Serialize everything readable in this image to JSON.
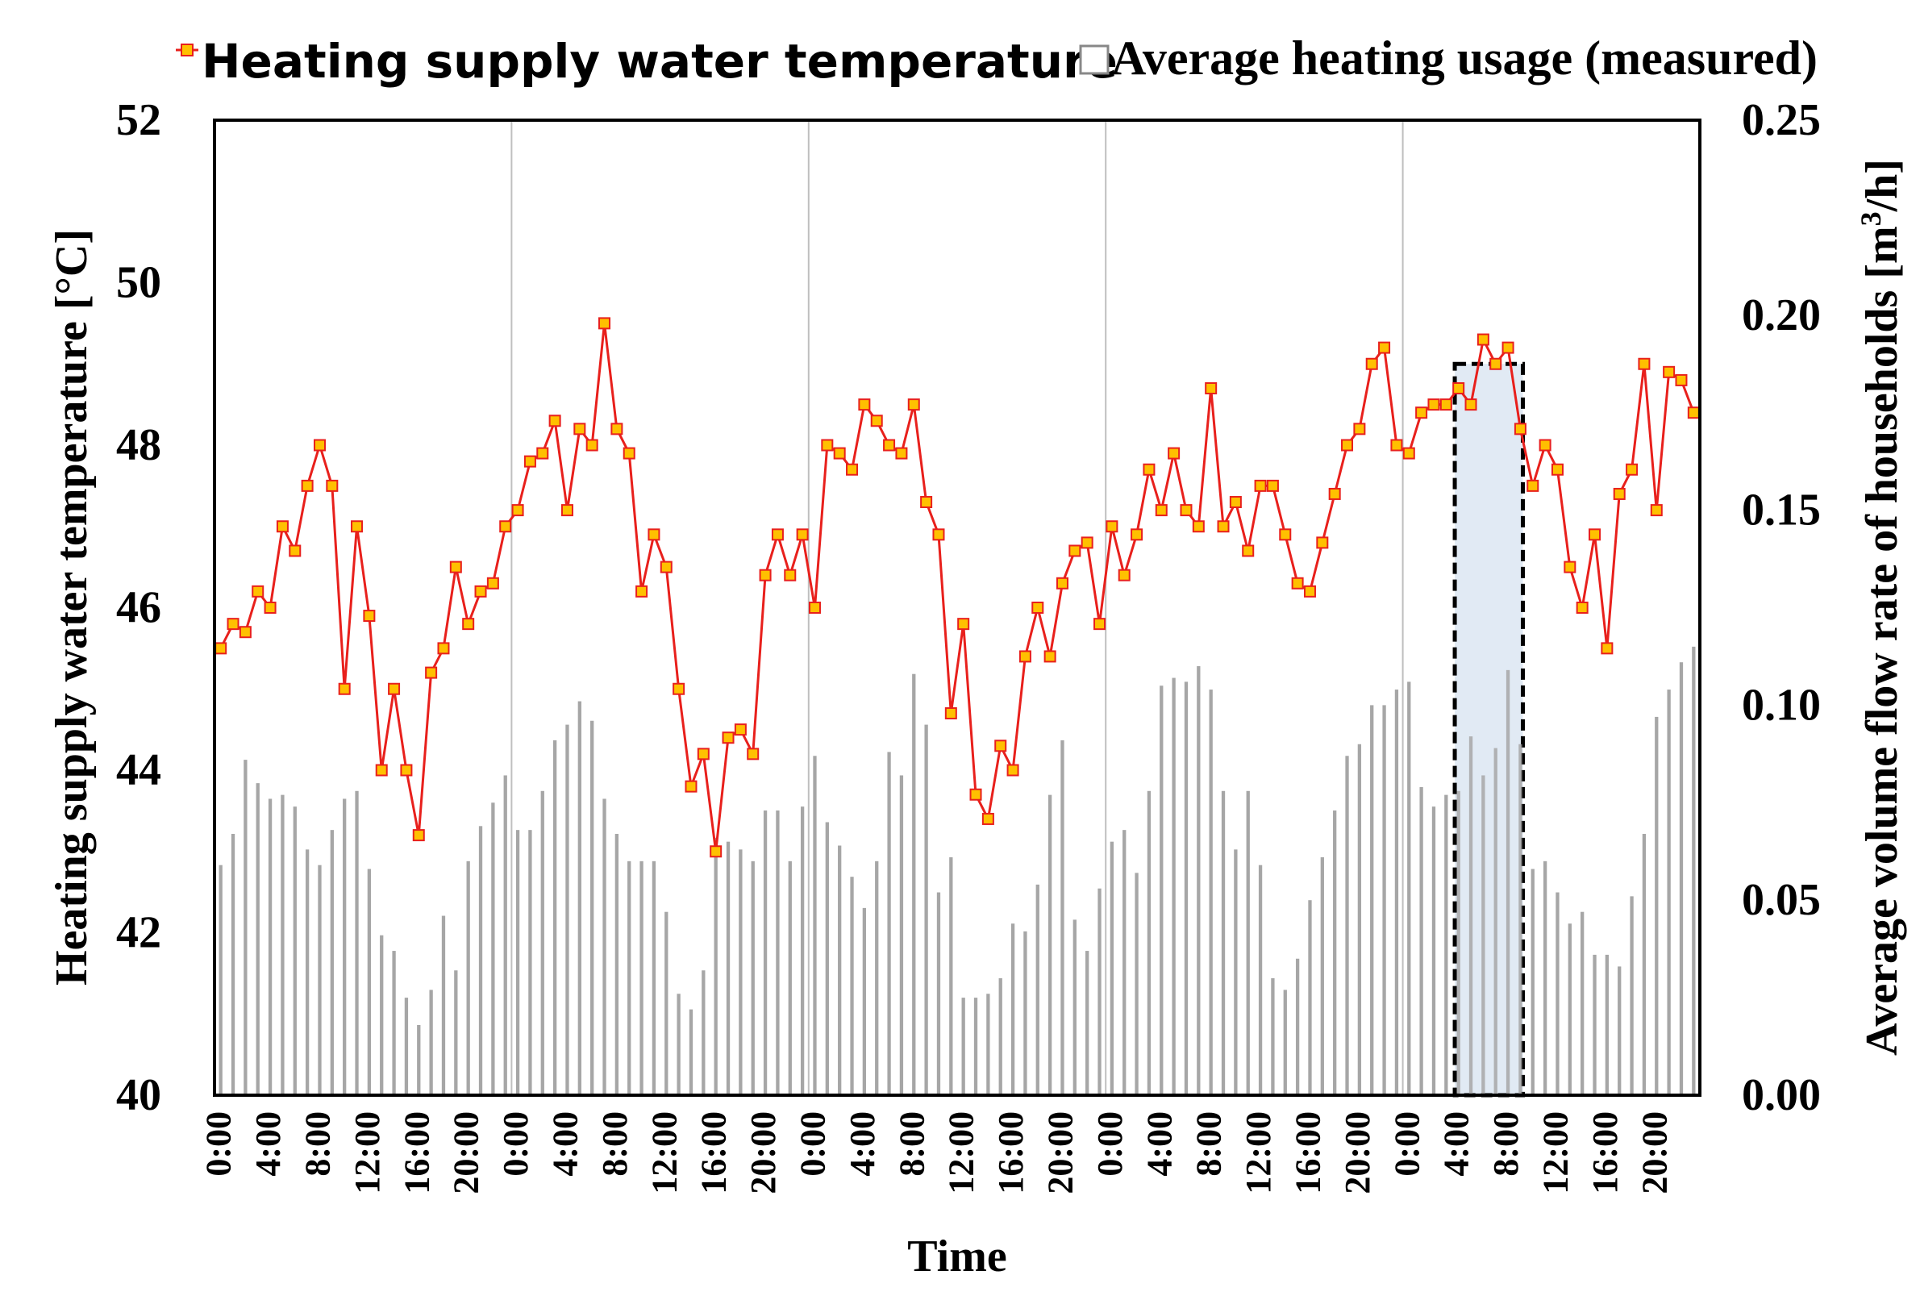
{
  "chart_data": {
    "type": "line+bar",
    "xlabel": "Time",
    "ylabel_left": "Heating supply water temperature [°C]",
    "ylabel_right_prefix": "Average volume flow rate of households [m",
    "ylabel_right_sup": "3",
    "ylabel_right_suffix": "/h]",
    "ylim_left": [
      40,
      52
    ],
    "ylim_right": [
      0,
      0.25
    ],
    "yticks_left": [
      "40",
      "42",
      "44",
      "46",
      "48",
      "50",
      "52"
    ],
    "yticks_right": [
      "0.00",
      "0.05",
      "0.10",
      "0.15",
      "0.20",
      "0.25"
    ],
    "xtick_labels": [
      "0:00",
      "4:00",
      "8:00",
      "12:00",
      "16:00",
      "20:00",
      "0:00",
      "4:00",
      "8:00",
      "12:00",
      "16:00",
      "20:00",
      "0:00",
      "4:00",
      "8:00",
      "12:00",
      "16:00",
      "20:00",
      "0:00",
      "4:00",
      "8:00",
      "12:00",
      "16:00",
      "20:00",
      "0:00",
      "4:00",
      "8:00",
      "12:00",
      "16:00",
      "20:00"
    ],
    "legend": {
      "line_label": "Heating supply water temperature",
      "bar_label": "Average heating usage (measured)"
    },
    "colors": {
      "line": "#e8201c",
      "marker_fill": "#ffc000",
      "bar": "#a6a6a6",
      "highlight": "#dce6f2"
    },
    "highlight_hours": [
      100,
      106
    ],
    "series": [
      {
        "name": "Heating supply water temperature",
        "axis": "left",
        "values": [
          45.5,
          45.8,
          45.7,
          46.2,
          46.0,
          47.0,
          46.7,
          47.5,
          48.0,
          47.5,
          45.0,
          47.0,
          45.9,
          44.0,
          45.0,
          44.0,
          43.2,
          45.2,
          45.5,
          46.5,
          45.8,
          46.2,
          46.3,
          47.0,
          47.2,
          47.8,
          47.9,
          48.3,
          47.2,
          48.2,
          48.0,
          49.5,
          48.2,
          47.9,
          46.2,
          46.9,
          46.5,
          45.0,
          43.8,
          44.2,
          43.0,
          44.4,
          44.5,
          44.2,
          46.4,
          46.9,
          46.4,
          46.9,
          46.0,
          48.0,
          47.9,
          47.7,
          48.5,
          48.3,
          48.0,
          47.9,
          48.5,
          47.3,
          46.9,
          44.7,
          45.8,
          43.7,
          43.4,
          44.3,
          44.0,
          45.4,
          46.0,
          45.4,
          46.3,
          46.7,
          46.8,
          45.8,
          47.0,
          46.4,
          46.9,
          47.7,
          47.2,
          47.9,
          47.2,
          47.0,
          48.7,
          47.0,
          47.3,
          46.7,
          47.5,
          47.5,
          46.9,
          46.3,
          46.2,
          46.8,
          47.4,
          48.0,
          48.2,
          49.0,
          49.2,
          48.0,
          47.9,
          48.4,
          48.5,
          48.5,
          48.7,
          48.5,
          49.3,
          49.0,
          49.2,
          48.2,
          47.5,
          48.0,
          47.7,
          46.5,
          46.0,
          46.9,
          45.5,
          47.4,
          47.7,
          49.0,
          47.2,
          48.9,
          48.8,
          48.4
        ]
      },
      {
        "name": "Average heating usage (measured)",
        "axis": "right",
        "values": [
          0.059,
          0.067,
          0.086,
          0.08,
          0.076,
          0.077,
          0.074,
          0.063,
          0.059,
          0.068,
          0.076,
          0.078,
          0.058,
          0.041,
          0.037,
          0.025,
          0.018,
          0.027,
          0.046,
          0.032,
          0.06,
          0.069,
          0.075,
          0.082,
          0.068,
          0.068,
          0.078,
          0.091,
          0.095,
          0.101,
          0.096,
          0.076,
          0.067,
          0.06,
          0.06,
          0.06,
          0.047,
          0.026,
          0.022,
          0.032,
          0.066,
          0.065,
          0.063,
          0.06,
          0.073,
          0.073,
          0.06,
          0.074,
          0.087,
          0.07,
          0.064,
          0.056,
          0.048,
          0.06,
          0.088,
          0.082,
          0.108,
          0.095,
          0.052,
          0.061,
          0.025,
          0.025,
          0.026,
          0.03,
          0.044,
          0.042,
          0.054,
          0.077,
          0.091,
          0.045,
          0.037,
          0.053,
          0.065,
          0.068,
          0.057,
          0.078,
          0.105,
          0.107,
          0.106,
          0.11,
          0.104,
          0.078,
          0.063,
          0.078,
          0.059,
          0.03,
          0.027,
          0.035,
          0.05,
          0.061,
          0.073,
          0.087,
          0.09,
          0.1,
          0.1,
          0.104,
          0.106,
          0.079,
          0.074,
          0.077,
          0.078,
          0.092,
          0.082,
          0.089,
          0.109,
          0.09,
          0.058,
          0.06,
          0.052,
          0.044,
          0.047,
          0.036,
          0.036,
          0.033,
          0.051,
          0.067,
          0.097,
          0.104,
          0.111,
          0.115
        ]
      }
    ]
  }
}
